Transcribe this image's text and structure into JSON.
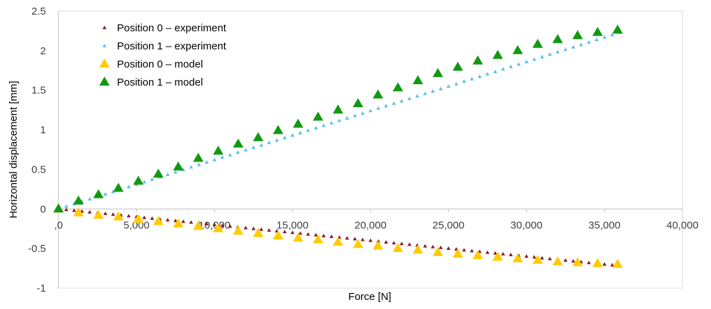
{
  "chart_data": {
    "type": "scatter",
    "xlabel": "Force [N]",
    "ylabel": "Horizontal displacement [mm]",
    "xlim": [
      0,
      40000
    ],
    "ylim": [
      -1,
      2.5
    ],
    "x_ticks": [
      0,
      5000,
      10000,
      15000,
      20000,
      25000,
      30000,
      35000,
      40000
    ],
    "x_tick_labels": [
      ",0",
      "5,000",
      "10,000",
      "15,000",
      "20,000",
      "25,000",
      "30,000",
      "35,000",
      "40,000"
    ],
    "y_ticks": [
      -1,
      -0.5,
      0,
      0.5,
      1,
      1.5,
      2,
      2.5
    ],
    "y_tick_labels": [
      "-1",
      "-0.5",
      "0",
      "0.5",
      "1",
      "1.5",
      "2",
      "2.5"
    ],
    "grid": false,
    "legend_position": "top-left",
    "series": [
      {
        "name": "Position 0 – experiment",
        "color": "#8B1A2B",
        "marker": "small-triangle",
        "x_start": 0,
        "x_end": 36000,
        "x_step": 500,
        "y_start": 0,
        "y_end": -0.72
      },
      {
        "name": "Position 1 – experiment",
        "color": "#5BC0EB",
        "marker": "small-triangle",
        "x_start": 0,
        "x_end": 36000,
        "x_step": 500,
        "y_start": 0,
        "y_end": 2.23
      },
      {
        "name": "Position 0 – model",
        "color": "#FFCC00",
        "marker": "large-triangle",
        "x": [
          0,
          1280,
          2560,
          3840,
          5120,
          6400,
          7680,
          8960,
          10240,
          11520,
          12800,
          14080,
          15360,
          16640,
          17920,
          19200,
          20480,
          21760,
          23040,
          24320,
          25600,
          26880,
          28160,
          29440,
          30720,
          32000,
          33280,
          34560,
          35840
        ],
        "y": [
          0.0,
          -0.05,
          -0.08,
          -0.1,
          -0.13,
          -0.16,
          -0.19,
          -0.22,
          -0.25,
          -0.28,
          -0.31,
          -0.34,
          -0.37,
          -0.39,
          -0.42,
          -0.45,
          -0.47,
          -0.5,
          -0.52,
          -0.55,
          -0.57,
          -0.59,
          -0.61,
          -0.63,
          -0.65,
          -0.67,
          -0.68,
          -0.69,
          -0.7
        ]
      },
      {
        "name": "Position 1 – model",
        "color": "#119911",
        "marker": "large-triangle",
        "x": [
          0,
          1280,
          2560,
          3840,
          5120,
          6400,
          7680,
          8960,
          10240,
          11520,
          12800,
          14080,
          15360,
          16640,
          17920,
          19200,
          20480,
          21760,
          23040,
          24320,
          25600,
          26880,
          28160,
          29440,
          30720,
          32000,
          33280,
          34560,
          35840
        ],
        "y": [
          0.0,
          0.1,
          0.18,
          0.26,
          0.35,
          0.44,
          0.53,
          0.64,
          0.73,
          0.82,
          0.9,
          0.99,
          1.07,
          1.16,
          1.25,
          1.33,
          1.44,
          1.53,
          1.62,
          1.71,
          1.79,
          1.87,
          1.94,
          2.0,
          2.08,
          2.14,
          2.19,
          2.23,
          2.26
        ]
      }
    ]
  }
}
